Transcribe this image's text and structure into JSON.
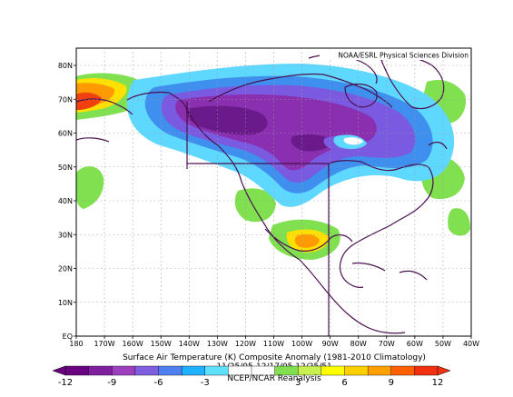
{
  "credit": "NOAA/ESRL Physical Sciences Division",
  "title_line1": "Surface Air Temperature (K) Composite Anomaly (1981-2010 Climatology)",
  "title_line2": "11/25/05-12/17/05 12/25/51",
  "source": "NCEP/NCAR Reanalysis",
  "lat_labels": [
    "80N",
    "70N",
    "60N",
    "50N",
    "40N",
    "30N",
    "20N",
    "10N",
    "EQ"
  ],
  "lon_labels": [
    "180",
    "170W",
    "160W",
    "150W",
    "140W",
    "130W",
    "120W",
    "110W",
    "100W",
    "90W",
    "80W",
    "70W",
    "60W",
    "50W",
    "40W"
  ],
  "colorbar": {
    "tick_labels": [
      "-12",
      "-9",
      "-6",
      "-3",
      "3",
      "6",
      "9",
      "12"
    ],
    "colors": [
      "#6a0080",
      "#7f1f9f",
      "#9b3fbf",
      "#7f5fdf",
      "#4f7fef",
      "#1fb0ff",
      "#60e0ff",
      "#ffffff",
      "#ffffff",
      "#80e050",
      "#c8f050",
      "#ffff00",
      "#ffd000",
      "#ffa000",
      "#ff6000",
      "#f03010"
    ]
  },
  "colors": {
    "coast": "#4a1050",
    "cold_deep": "#6a1a8a",
    "cold": "#8a2fb0",
    "cold_mid": "#7a5ae0",
    "cold_light": "#3f8fef",
    "cold_pale": "#5fd8ff",
    "warm_green": "#80e050",
    "warm_yellow": "#ffe000",
    "warm_orange": "#ff9a00",
    "warm_red": "#f04010"
  }
}
